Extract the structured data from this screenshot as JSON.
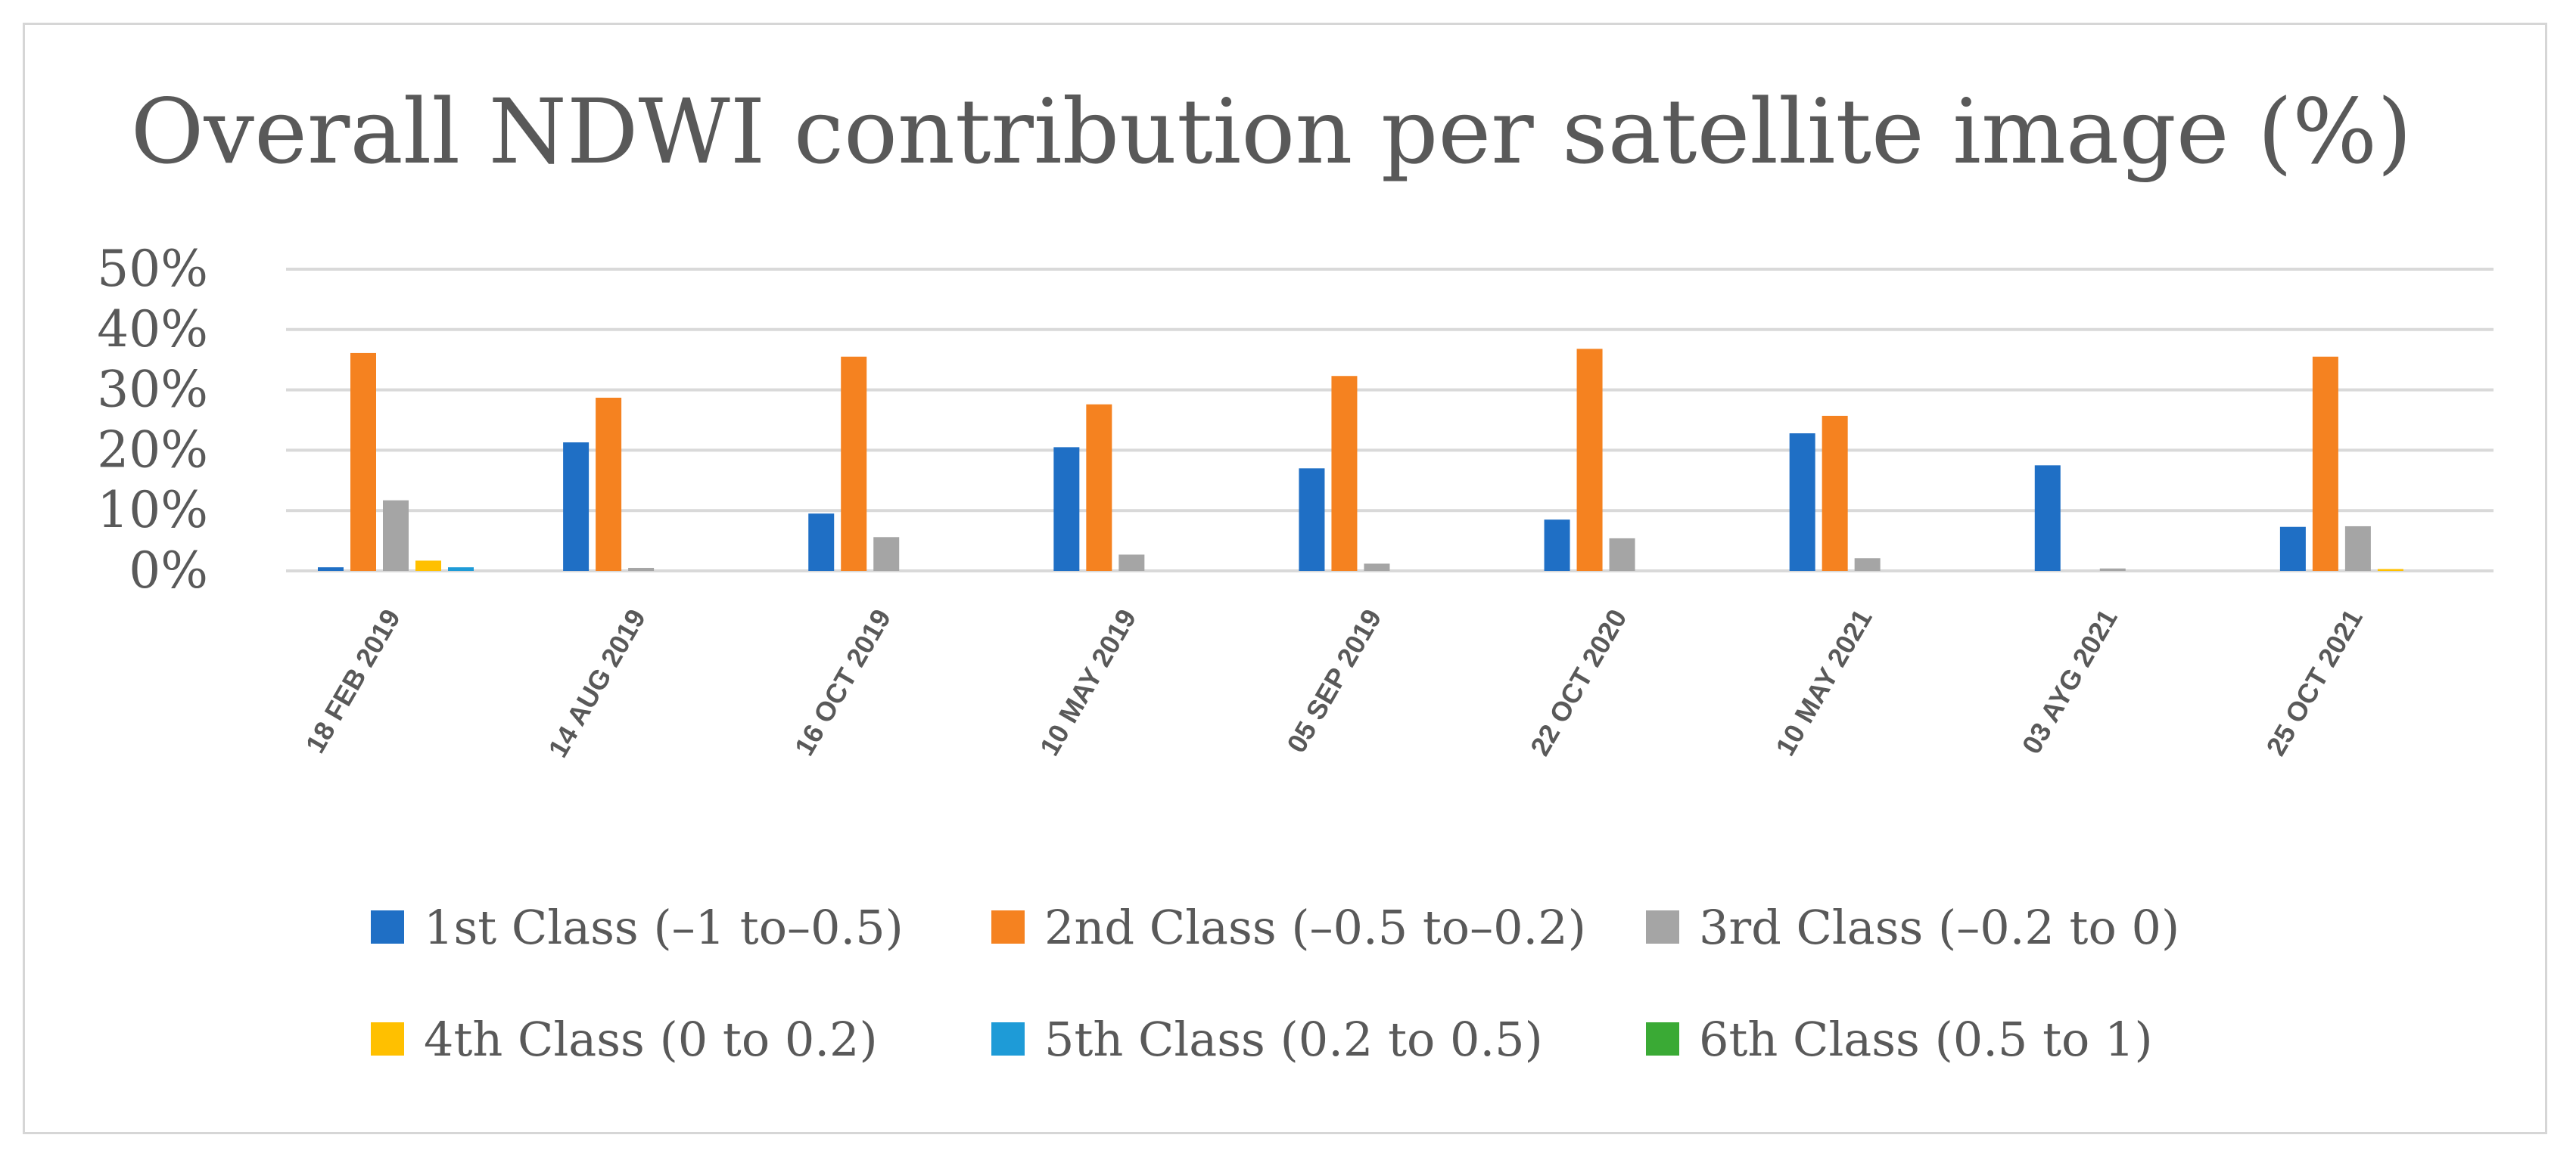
{
  "chart_data": {
    "type": "bar",
    "title": "Overall NDWI contribution per satellite image (%)",
    "xlabel": "",
    "ylabel": "",
    "ylim": [
      0,
      50
    ],
    "yticks": [
      "0%",
      "10%",
      "20%",
      "30%",
      "40%",
      "50%"
    ],
    "ytick_values": [
      0,
      10,
      20,
      30,
      40,
      50
    ],
    "grid": true,
    "legend_position": "bottom",
    "categories": [
      "18 FEB 2019",
      "14 AUG 2019",
      "16 OCT 2019",
      "10 MAY 2019",
      "05 SEP 2019",
      "22 OCT 2020",
      "10 MAY 2021",
      "03 AYG 2021",
      "25 OCT 2021"
    ],
    "series": [
      {
        "name": "1st Class (–1 to–0.5)",
        "color": "#1f6fc5",
        "values": [
          0.6,
          21.3,
          9.5,
          20.5,
          17.0,
          8.5,
          22.8,
          17.5,
          7.3
        ]
      },
      {
        "name": "2nd Class (–0.5 to–0.2)",
        "color": "#f58220",
        "values": [
          36.1,
          28.7,
          35.5,
          27.6,
          32.3,
          36.8,
          25.7,
          0,
          35.5
        ]
      },
      {
        "name": "3rd Class (–0.2 to 0)",
        "color": "#a5a5a5",
        "values": [
          11.7,
          0.5,
          5.6,
          2.7,
          1.2,
          5.4,
          2.1,
          0.4,
          7.4
        ]
      },
      {
        "name": "4th Class (0 to 0.2)",
        "color": "#ffc000",
        "values": [
          1.7,
          0,
          0,
          0,
          0,
          0,
          0,
          0,
          0.3
        ]
      },
      {
        "name": "5th Class (0.2 to 0.5)",
        "color": "#1e9bd7",
        "values": [
          0.6,
          0,
          0,
          0,
          0,
          0,
          0,
          0,
          0
        ]
      },
      {
        "name": "6th Class (0.5 to 1)",
        "color": "#3aaa35",
        "values": [
          0,
          0,
          0,
          0,
          0,
          0,
          0,
          0,
          0
        ]
      }
    ]
  }
}
